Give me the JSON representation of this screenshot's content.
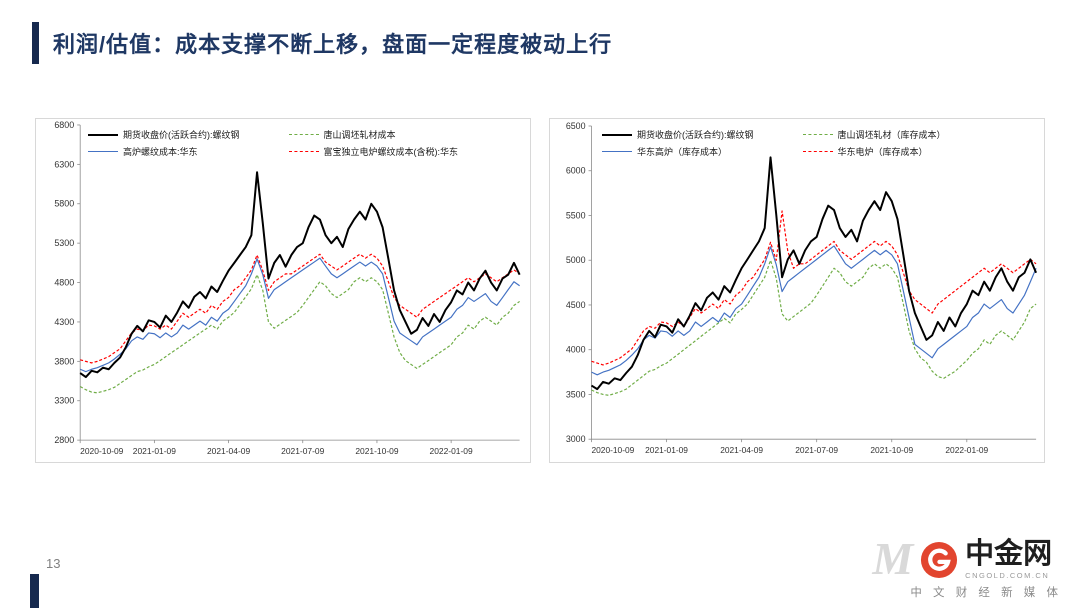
{
  "slide": {
    "title": "利润/估值：成本支撑不断上移，盘面一定程度被动上行",
    "page_number": "13",
    "accent_color": "#16294E",
    "title_color": "#1F3864"
  },
  "brand": {
    "name": "中金网",
    "domain": "CNGOLD.COM.CN",
    "tagline": "中 文 财 经 新 媒 体",
    "watermark": "M",
    "logo_color": "#E2452F"
  },
  "chart_data": [
    {
      "type": "line",
      "title": "",
      "grid": false,
      "legend_position": "top-left",
      "ylim": [
        2800,
        6800
      ],
      "yticks": [
        2800,
        3300,
        3800,
        4300,
        4800,
        5300,
        5800,
        6300,
        6800
      ],
      "xticklabels": [
        "2020-10-09",
        "2021-01-09",
        "2021-04-09",
        "2021-07-09",
        "2021-10-09",
        "2022-01-09"
      ],
      "xtick_indices": [
        0,
        13,
        26,
        39,
        52,
        65
      ],
      "series": [
        {
          "name": "期货收盘价(活跃合约):螺纹钢",
          "color": "#000000",
          "dash": "",
          "width": 2,
          "values": [
            3650,
            3600,
            3680,
            3660,
            3720,
            3700,
            3780,
            3850,
            3980,
            4150,
            4250,
            4180,
            4320,
            4300,
            4230,
            4380,
            4300,
            4420,
            4560,
            4480,
            4620,
            4680,
            4600,
            4750,
            4680,
            4820,
            4950,
            5050,
            5150,
            5250,
            5400,
            6200,
            5550,
            4850,
            5050,
            5150,
            5000,
            5150,
            5250,
            5300,
            5500,
            5650,
            5600,
            5400,
            5300,
            5380,
            5250,
            5480,
            5600,
            5700,
            5600,
            5800,
            5700,
            5500,
            5100,
            4700,
            4450,
            4300,
            4150,
            4200,
            4350,
            4250,
            4400,
            4300,
            4450,
            4550,
            4700,
            4650,
            4800,
            4700,
            4850,
            4950,
            4800,
            4700,
            4850,
            4900,
            5050,
            4900
          ]
        },
        {
          "name": "唐山调坯轧材成本",
          "color": "#70AD47",
          "dash": "3,2",
          "width": 1.2,
          "values": [
            3480,
            3440,
            3410,
            3400,
            3420,
            3440,
            3470,
            3520,
            3570,
            3620,
            3670,
            3690,
            3730,
            3760,
            3810,
            3860,
            3910,
            3960,
            4010,
            4060,
            4110,
            4160,
            4210,
            4260,
            4210,
            4310,
            4360,
            4420,
            4520,
            4620,
            4720,
            4900,
            4700,
            4300,
            4220,
            4270,
            4320,
            4370,
            4420,
            4510,
            4610,
            4710,
            4810,
            4760,
            4660,
            4610,
            4660,
            4710,
            4810,
            4860,
            4810,
            4860,
            4810,
            4710,
            4410,
            4110,
            3910,
            3810,
            3760,
            3710,
            3760,
            3810,
            3860,
            3910,
            3960,
            4010,
            4110,
            4160,
            4260,
            4210,
            4310,
            4360,
            4310,
            4260,
            4360,
            4410,
            4510,
            4560
          ]
        },
        {
          "name": "高炉螺纹成本:华东",
          "color": "#4472C4",
          "dash": "",
          "width": 1.2,
          "values": [
            3700,
            3670,
            3700,
            3720,
            3750,
            3780,
            3830,
            3890,
            3960,
            4060,
            4110,
            4080,
            4160,
            4150,
            4100,
            4160,
            4110,
            4160,
            4260,
            4210,
            4260,
            4310,
            4260,
            4360,
            4310,
            4410,
            4460,
            4560,
            4660,
            4760,
            4910,
            5100,
            4900,
            4600,
            4710,
            4760,
            4810,
            4860,
            4910,
            4960,
            5010,
            5060,
            5110,
            5010,
            4910,
            4860,
            4910,
            4960,
            5010,
            5060,
            5010,
            5060,
            5010,
            4910,
            4610,
            4310,
            4160,
            4110,
            4060,
            4010,
            4110,
            4160,
            4210,
            4260,
            4310,
            4360,
            4460,
            4510,
            4610,
            4560,
            4610,
            4660,
            4560,
            4510,
            4610,
            4710,
            4810,
            4760
          ]
        },
        {
          "name": "富宝独立电炉螺纹成本(含税):华东",
          "color": "#FF0000",
          "dash": "3,2",
          "width": 1.2,
          "values": [
            3820,
            3800,
            3780,
            3800,
            3830,
            3860,
            3910,
            3960,
            4060,
            4160,
            4210,
            4190,
            4260,
            4250,
            4210,
            4260,
            4210,
            4310,
            4410,
            4360,
            4410,
            4460,
            4410,
            4510,
            4460,
            4560,
            4610,
            4710,
            4760,
            4860,
            4960,
            5150,
            4950,
            4700,
            4810,
            4860,
            4910,
            4910,
            4960,
            5010,
            5060,
            5110,
            5160,
            5060,
            5010,
            4960,
            5010,
            5060,
            5110,
            5160,
            5110,
            5160,
            5110,
            5010,
            4810,
            4610,
            4510,
            4460,
            4410,
            4360,
            4460,
            4510,
            4560,
            4610,
            4660,
            4710,
            4760,
            4810,
            4860,
            4810,
            4860,
            4910,
            4860,
            4810,
            4860,
            4910,
            4960,
            4910
          ]
        }
      ]
    },
    {
      "type": "line",
      "title": "",
      "grid": false,
      "legend_position": "top-left",
      "ylim": [
        3000,
        6500
      ],
      "yticks": [
        3000,
        3500,
        4000,
        4500,
        5000,
        5500,
        6000,
        6500
      ],
      "xticklabels": [
        "2020-10-09",
        "2021-01-09",
        "2021-04-09",
        "2021-07-09",
        "2021-10-09",
        "2022-01-09"
      ],
      "xtick_indices": [
        0,
        13,
        26,
        39,
        52,
        65
      ],
      "series": [
        {
          "name": "期货收盘价(活跃合约):螺纹钢",
          "color": "#000000",
          "dash": "",
          "width": 2,
          "values": [
            3600,
            3560,
            3640,
            3620,
            3680,
            3660,
            3740,
            3810,
            3940,
            4110,
            4210,
            4140,
            4280,
            4260,
            4190,
            4340,
            4260,
            4380,
            4520,
            4440,
            4580,
            4640,
            4560,
            4710,
            4640,
            4780,
            4910,
            5010,
            5110,
            5210,
            5360,
            6150,
            5510,
            4810,
            5010,
            5110,
            4960,
            5110,
            5210,
            5260,
            5460,
            5610,
            5560,
            5360,
            5260,
            5340,
            5210,
            5440,
            5560,
            5660,
            5560,
            5760,
            5660,
            5460,
            5060,
            4660,
            4410,
            4260,
            4110,
            4160,
            4310,
            4210,
            4360,
            4260,
            4410,
            4510,
            4660,
            4610,
            4760,
            4660,
            4810,
            4910,
            4760,
            4660,
            4810,
            4860,
            5010,
            4860
          ]
        },
        {
          "name": "唐山调坯轧材（库存成本）",
          "color": "#70AD47",
          "dash": "3,2",
          "width": 1.2,
          "values": [
            3550,
            3520,
            3500,
            3490,
            3510,
            3530,
            3560,
            3610,
            3660,
            3710,
            3760,
            3780,
            3820,
            3850,
            3900,
            3950,
            4000,
            4050,
            4100,
            4150,
            4200,
            4250,
            4300,
            4350,
            4300,
            4400,
            4450,
            4510,
            4610,
            4710,
            4810,
            5000,
            4800,
            4400,
            4320,
            4370,
            4420,
            4470,
            4520,
            4610,
            4710,
            4810,
            4910,
            4860,
            4760,
            4710,
            4760,
            4810,
            4910,
            4960,
            4910,
            4960,
            4910,
            4810,
            4510,
            4210,
            4010,
            3910,
            3860,
            3760,
            3700,
            3680,
            3720,
            3760,
            3820,
            3880,
            3960,
            4010,
            4110,
            4060,
            4160,
            4210,
            4160,
            4110,
            4210,
            4310,
            4460,
            4510
          ]
        },
        {
          "name": "华东高炉（库存成本）",
          "color": "#4472C4",
          "dash": "",
          "width": 1.2,
          "values": [
            3750,
            3720,
            3750,
            3770,
            3800,
            3830,
            3880,
            3940,
            4010,
            4110,
            4160,
            4130,
            4210,
            4200,
            4150,
            4210,
            4160,
            4210,
            4310,
            4260,
            4310,
            4360,
            4310,
            4410,
            4360,
            4460,
            4510,
            4610,
            4710,
            4810,
            4960,
            5150,
            4950,
            4650,
            4760,
            4810,
            4860,
            4910,
            4960,
            5010,
            5060,
            5110,
            5160,
            5060,
            4960,
            4910,
            4960,
            5010,
            5060,
            5110,
            5060,
            5110,
            5060,
            4960,
            4660,
            4360,
            4060,
            4010,
            3960,
            3910,
            4010,
            4060,
            4110,
            4160,
            4210,
            4260,
            4360,
            4410,
            4510,
            4460,
            4510,
            4560,
            4460,
            4410,
            4510,
            4610,
            4760,
            4910
          ]
        },
        {
          "name": "华东电炉（库存成本）",
          "color": "#FF0000",
          "dash": "3,2",
          "width": 1.2,
          "values": [
            3870,
            3850,
            3830,
            3850,
            3880,
            3910,
            3960,
            4010,
            4110,
            4210,
            4260,
            4240,
            4310,
            4300,
            4260,
            4310,
            4260,
            4360,
            4460,
            4410,
            4460,
            4510,
            4460,
            4560,
            4510,
            4610,
            4660,
            4760,
            4810,
            4910,
            5010,
            5200,
            5000,
            5550,
            5100,
            4910,
            4960,
            4960,
            5010,
            5060,
            5110,
            5160,
            5210,
            5110,
            5060,
            5010,
            5060,
            5110,
            5160,
            5210,
            5160,
            5210,
            5160,
            5060,
            4860,
            4660,
            4560,
            4510,
            4460,
            4410,
            4510,
            4560,
            4610,
            4660,
            4710,
            4760,
            4810,
            4860,
            4910,
            4860,
            4910,
            4960,
            4910,
            4860,
            4910,
            4960,
            5010,
            4960
          ]
        }
      ]
    }
  ]
}
